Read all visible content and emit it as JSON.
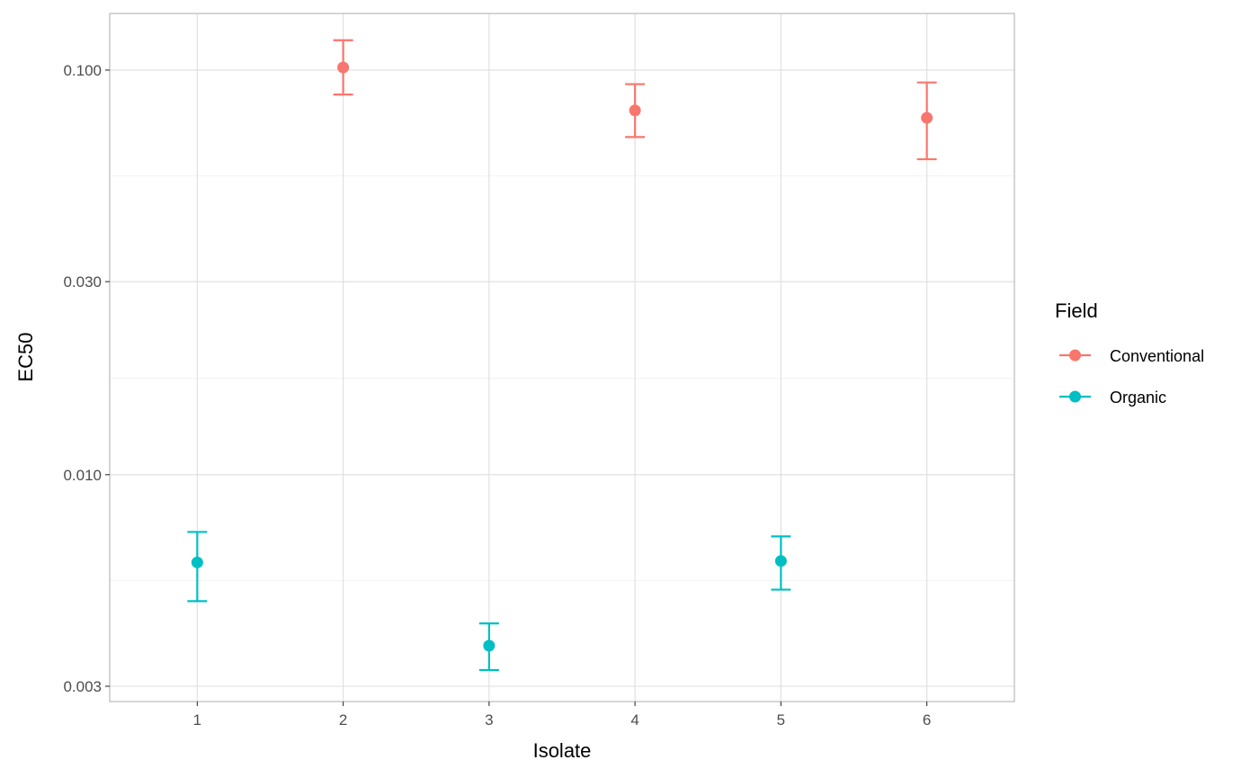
{
  "chart_data": {
    "type": "scatter",
    "title": "",
    "xlabel": "Isolate",
    "ylabel": "EC50",
    "y_scale": "log10",
    "xlim": [
      0.4,
      6.6
    ],
    "ylim": [
      0.00275,
      0.138
    ],
    "grid": true,
    "legend_position": "right",
    "legend_title": "Field",
    "x_ticks": [
      "1",
      "2",
      "3",
      "4",
      "5",
      "6"
    ],
    "y_ticks": [
      "0.003",
      "0.010",
      "0.030",
      "0.100"
    ],
    "series": [
      {
        "name": "Conventional",
        "color": "#F8766D",
        "points": [
          {
            "x": 2,
            "y": 0.1015,
            "ymin": 0.087,
            "ymax": 0.1185
          },
          {
            "x": 4,
            "y": 0.0795,
            "ymin": 0.0683,
            "ymax": 0.0923
          },
          {
            "x": 6,
            "y": 0.0762,
            "ymin": 0.0602,
            "ymax": 0.0932
          }
        ]
      },
      {
        "name": "Organic",
        "color": "#00BFC4",
        "points": [
          {
            "x": 1,
            "y": 0.00607,
            "ymin": 0.00487,
            "ymax": 0.00722
          },
          {
            "x": 3,
            "y": 0.00378,
            "ymin": 0.00329,
            "ymax": 0.00429
          },
          {
            "x": 5,
            "y": 0.00612,
            "ymin": 0.0052,
            "ymax": 0.00704
          }
        ]
      }
    ]
  }
}
